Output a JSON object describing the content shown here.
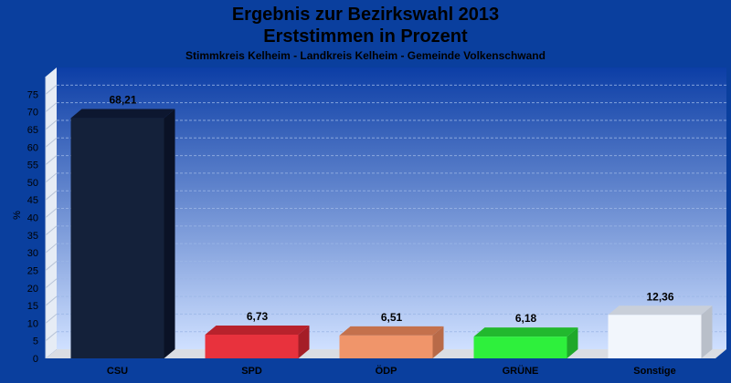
{
  "chart_data": {
    "type": "bar",
    "title": "Ergebnis zur Bezirkswahl 2013",
    "subtitle": "Erststimmen in Prozent",
    "caption": "Stimmkreis Kelheim - Landkreis Kelheim - Gemeinde Volkenschwand",
    "ylabel": "%",
    "xlabel": "",
    "ylim": [
      0,
      80
    ],
    "yticks": [
      0,
      5,
      10,
      15,
      20,
      25,
      30,
      35,
      40,
      45,
      50,
      55,
      60,
      65,
      70,
      75
    ],
    "grid": true,
    "categories": [
      "CSU",
      "SPD",
      "ÖDP",
      "GRÜNE",
      "Sonstige"
    ],
    "values": [
      68.21,
      6.73,
      6.51,
      6.18,
      12.36
    ],
    "value_labels": [
      "68,21",
      "6,73",
      "6,51",
      "6,18",
      "12,36"
    ],
    "colors": [
      {
        "front": "#14213a",
        "top": "#0d1730",
        "side": "#0a1226"
      },
      {
        "front": "#e8323d",
        "top": "#b8222c",
        "side": "#a51e27"
      },
      {
        "front": "#f0956a",
        "top": "#c4714c",
        "side": "#b86a48"
      },
      {
        "front": "#2ef03c",
        "top": "#22b82e",
        "side": "#1fa82a"
      },
      {
        "front": "#f2f6fc",
        "top": "#c9cfd9",
        "side": "#b9bfc9"
      }
    ],
    "plot_background_top": "#0c3ea6",
    "plot_background_bottom": "#cfe0ff",
    "page_background": "#0a3f9e"
  }
}
